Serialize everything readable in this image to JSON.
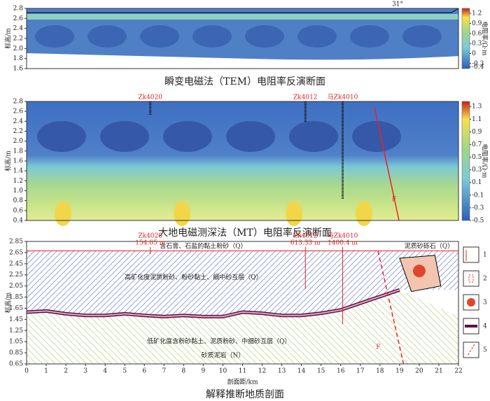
{
  "chart_data": [
    {
      "type": "contour",
      "title": "瞬变电磁法（TEM）电阻率反演断面",
      "y_label": "标高/m",
      "ylim": [
        1.6,
        2.8
      ],
      "yticks": [
        1.6,
        1.8,
        {
          "value": 2,
          "label": "2.0"
        },
        2.2,
        2.4,
        2.6,
        2.8
      ],
      "colorbar_label": "电阻率/Ω·m",
      "colorbar_lim": [
        -0.45,
        1.35
      ],
      "colorbar_ticks": [
        1.2,
        0.9,
        0.6,
        0.3,
        0,
        -0.3,
        -0.4
      ],
      "annotation": "31°"
    },
    {
      "type": "contour",
      "title": "大地电磁测深法（MT）电阻率反演断面",
      "y_label": "标高/m",
      "xlim": [
        0,
        22
      ],
      "ylim": [
        0.4,
        2.8
      ],
      "yticks": [
        0.4,
        0.6,
        0.8,
        {
          "value": 1,
          "label": "1.0"
        },
        1.2,
        1.4,
        1.6,
        1.8,
        {
          "value": 2,
          "label": "2.0"
        },
        2.2,
        2.4,
        2.6,
        2.8
      ],
      "colorbar_label": "电阻率/Ω·m",
      "colorbar_lim": [
        -0.5,
        1.38
      ],
      "colorbar_ticks": [
        1.3,
        1.1,
        0.9,
        0.7,
        0.5,
        0.3,
        0.1,
        -0.1,
        -0.3,
        -0.5
      ],
      "boreholes": [
        {
          "name": "Zk4020",
          "x": 6.3
        },
        {
          "name": "Zk4012",
          "x": 14.2
        },
        {
          "name": "马Zk4010",
          "x": 16.1
        }
      ],
      "fault_label": "F"
    },
    {
      "type": "section",
      "title": "解释推断地质剖面",
      "x_label": "剖面距/km",
      "y_label": "标高/m",
      "xlim": [
        0,
        22
      ],
      "xticks": [
        0,
        1,
        2,
        3,
        4,
        5,
        6,
        7,
        8,
        9,
        10,
        11,
        12,
        13,
        14,
        15,
        16,
        17,
        18,
        19,
        20,
        21,
        22
      ],
      "ylim": [
        0.65,
        2.85
      ],
      "yticks": [
        0.65,
        0.85,
        1.05,
        1.25,
        1.45,
        1.65,
        1.85,
        2.05,
        2.25,
        2.45,
        2.65,
        2.85
      ],
      "boreholes": [
        {
          "name": "Zk4020",
          "depth_label": "154.65 m",
          "x": 6.3
        },
        {
          "name": "Zk4012",
          "depth_label": "613.33 m",
          "x": 14.2
        },
        {
          "name": "马Zk4010",
          "depth_label": "1400.4 m",
          "x": 16.1
        }
      ],
      "interface": {
        "x": [
          0,
          1,
          2,
          3,
          4,
          5,
          6,
          7,
          8,
          9,
          10,
          11,
          12,
          13,
          14,
          15,
          16,
          17,
          18,
          19
        ],
        "values": [
          1.58,
          1.6,
          1.55,
          1.52,
          1.52,
          1.55,
          1.52,
          1.5,
          1.52,
          1.5,
          1.5,
          1.58,
          1.56,
          1.52,
          1.52,
          1.56,
          1.62,
          1.74,
          1.86,
          1.98
        ]
      },
      "fault": {
        "label": "F",
        "x": [
          17.9,
          19.2
        ],
        "values": [
          2.68,
          0.65
        ]
      },
      "units": [
        "含石膏、石盐的黏土粉砂（Q）",
        "高矿化度泥质粉砂、粉砂黏土、细中砂互层（Q）",
        "低矿化度含粉砂黏土、泥质粉砂、中细砂互层（Q）",
        "砂质泥岩（N）",
        "泥质砂砾石（Q）"
      ],
      "legend": [
        "1",
        "2",
        "3",
        "4",
        "5"
      ]
    }
  ]
}
